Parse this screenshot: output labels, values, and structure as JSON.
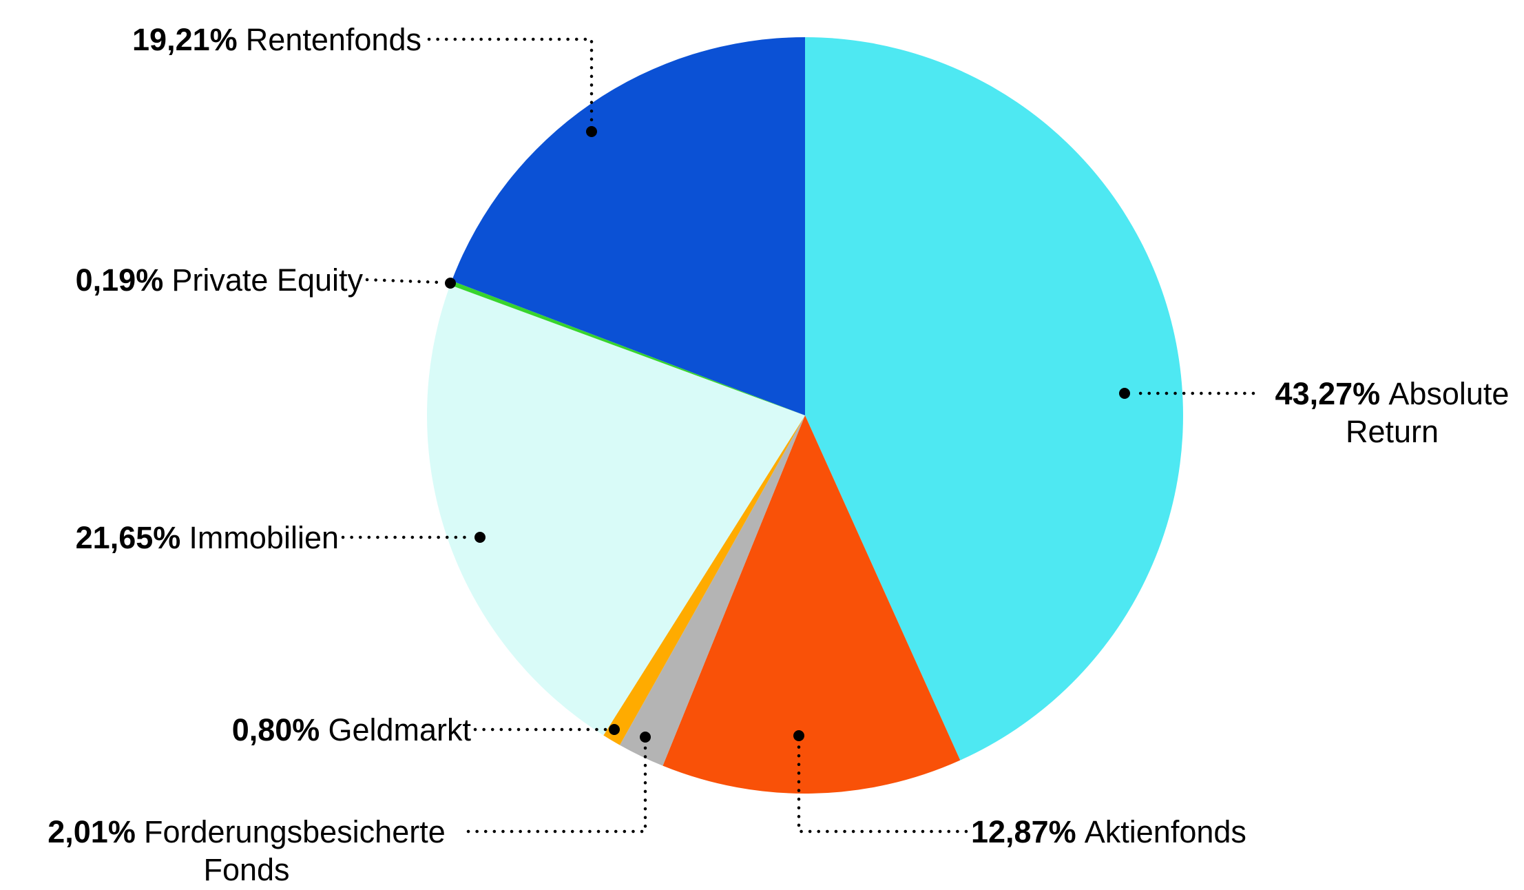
{
  "chart_data": {
    "type": "pie",
    "title": "",
    "direction": "clockwise",
    "start_angle": "12-o-clock",
    "unit": "%",
    "decimal_style": "comma",
    "legend_position": "none",
    "labels_style": "percent-bold + category name with dotted leader lines and end dots",
    "slices": [
      {
        "name": "Absolute Return",
        "value": 43.27,
        "display": "43,27%",
        "color": "#4EE8F2"
      },
      {
        "name": "Aktienfonds",
        "value": 12.87,
        "display": "12,87%",
        "color": "#F95108"
      },
      {
        "name": "Forderungsbesicherte Fonds",
        "value": 2.01,
        "display": "2,01%",
        "color": "#B4B4B4"
      },
      {
        "name": "Geldmarkt",
        "value": 0.8,
        "display": "0,80%",
        "color": "#FFAB00"
      },
      {
        "name": "Immobilien",
        "value": 21.65,
        "display": "21,65%",
        "color": "#D9FBF8"
      },
      {
        "name": "Private Equity",
        "value": 0.19,
        "display": "0,19%",
        "color": "#38D42E"
      },
      {
        "name": "Rentenfonds",
        "value": 19.21,
        "display": "19,21%",
        "color": "#0B51D5"
      }
    ]
  },
  "colors": {
    "background": "#ffffff",
    "text": "#000000",
    "leader_line": "#000000"
  }
}
